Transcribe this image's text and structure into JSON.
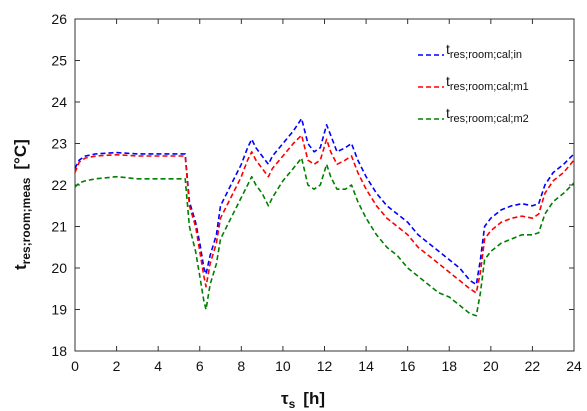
{
  "chart_data": {
    "type": "line",
    "xlabel": "τ",
    "xlabel_sub": "s",
    "xlabel_unit": "[h]",
    "ylabel": "t",
    "ylabel_sub": "res;room;meas",
    "ylabel_unit": "[°C]",
    "xlim": [
      0,
      24
    ],
    "ylim": [
      18,
      26
    ],
    "xticks": [
      "0",
      "2",
      "4",
      "6",
      "8",
      "10",
      "12",
      "14",
      "16",
      "18",
      "20",
      "22",
      "24"
    ],
    "yticks": [
      "18",
      "19",
      "20",
      "21",
      "22",
      "23",
      "24",
      "25",
      "26"
    ],
    "grid": false,
    "legend_position": "top-right",
    "series": [
      {
        "name": "t",
        "sub": "res;room;cal;in",
        "color": "#0000ff",
        "x": [
          0,
          0.2,
          0.5,
          1,
          2,
          3,
          4,
          5,
          5.3,
          5.5,
          5.8,
          6.0,
          6.2,
          6.3,
          6.5,
          6.8,
          7.0,
          7.5,
          8.0,
          8.3,
          8.5,
          8.7,
          9.0,
          9.3,
          9.5,
          10.0,
          10.5,
          10.9,
          11.2,
          11.5,
          11.8,
          12.1,
          12.3,
          12.6,
          13.0,
          13.3,
          13.6,
          14.0,
          14.5,
          15.0,
          15.5,
          16.0,
          16.5,
          17.0,
          17.5,
          18.0,
          18.5,
          19.0,
          19.3,
          19.5,
          19.7,
          20.0,
          20.5,
          21.0,
          21.5,
          22.0,
          22.3,
          22.6,
          23.0,
          23.5,
          24.0
        ],
        "y": [
          22.4,
          22.6,
          22.7,
          22.75,
          22.78,
          22.75,
          22.75,
          22.75,
          22.75,
          21.6,
          21.1,
          20.6,
          20.0,
          19.85,
          20.3,
          20.8,
          21.5,
          22.0,
          22.5,
          22.9,
          23.1,
          22.9,
          22.7,
          22.5,
          22.7,
          23.0,
          23.3,
          23.6,
          23.0,
          22.8,
          22.9,
          23.45,
          23.2,
          22.8,
          22.9,
          23.0,
          22.6,
          22.2,
          21.8,
          21.5,
          21.3,
          21.1,
          20.8,
          20.6,
          20.4,
          20.2,
          20.0,
          19.7,
          19.6,
          20.2,
          21.0,
          21.2,
          21.4,
          21.5,
          21.55,
          21.5,
          21.55,
          22.0,
          22.3,
          22.5,
          22.75
        ]
      },
      {
        "name": "t",
        "sub": "res;room;cal;m1",
        "color": "#ff0000",
        "x": [
          0,
          0.2,
          0.5,
          1,
          2,
          3,
          4,
          5,
          5.3,
          5.5,
          5.8,
          6.0,
          6.2,
          6.3,
          6.5,
          6.8,
          7.0,
          7.5,
          8.0,
          8.3,
          8.5,
          8.7,
          9.0,
          9.3,
          9.5,
          10.0,
          10.5,
          10.9,
          11.2,
          11.5,
          11.8,
          12.1,
          12.3,
          12.6,
          13.0,
          13.3,
          13.6,
          14.0,
          14.5,
          15.0,
          15.5,
          16.0,
          16.5,
          17.0,
          17.5,
          18.0,
          18.5,
          19.0,
          19.3,
          19.5,
          19.7,
          20.0,
          20.5,
          21.0,
          21.5,
          22.0,
          22.3,
          22.6,
          23.0,
          23.5,
          24.0
        ],
        "y": [
          22.3,
          22.55,
          22.65,
          22.7,
          22.73,
          22.7,
          22.7,
          22.7,
          22.7,
          21.5,
          21.0,
          20.4,
          19.8,
          19.55,
          20.1,
          20.6,
          21.2,
          21.7,
          22.2,
          22.6,
          22.8,
          22.6,
          22.4,
          22.2,
          22.4,
          22.7,
          23.0,
          23.2,
          22.6,
          22.5,
          22.6,
          23.1,
          22.8,
          22.5,
          22.6,
          22.7,
          22.3,
          21.9,
          21.5,
          21.2,
          21.0,
          20.8,
          20.5,
          20.3,
          20.1,
          19.9,
          19.7,
          19.5,
          19.4,
          19.9,
          20.7,
          20.9,
          21.1,
          21.2,
          21.25,
          21.2,
          21.3,
          21.8,
          22.1,
          22.3,
          22.6
        ]
      },
      {
        "name": "t",
        "sub": "res;room;cal;m2",
        "color": "#008000",
        "x": [
          0,
          0.2,
          0.5,
          1,
          2,
          3,
          4,
          5,
          5.3,
          5.5,
          5.8,
          6.0,
          6.2,
          6.3,
          6.5,
          6.8,
          7.0,
          7.5,
          8.0,
          8.3,
          8.5,
          8.7,
          9.0,
          9.3,
          9.5,
          10.0,
          10.5,
          10.9,
          11.2,
          11.5,
          11.8,
          12.1,
          12.3,
          12.6,
          13.0,
          13.3,
          13.6,
          14.0,
          14.5,
          15.0,
          15.5,
          16.0,
          16.5,
          17.0,
          17.5,
          18.0,
          18.5,
          19.0,
          19.3,
          19.5,
          19.7,
          20.0,
          20.5,
          21.0,
          21.5,
          22.0,
          22.3,
          22.6,
          23.0,
          23.5,
          24.0
        ],
        "y": [
          21.95,
          22.05,
          22.1,
          22.15,
          22.2,
          22.15,
          22.15,
          22.15,
          22.15,
          21.0,
          20.4,
          19.8,
          19.2,
          19.0,
          19.6,
          20.1,
          20.7,
          21.2,
          21.7,
          22.0,
          22.2,
          22.0,
          21.8,
          21.5,
          21.7,
          22.1,
          22.4,
          22.65,
          22.0,
          21.9,
          22.0,
          22.5,
          22.2,
          21.9,
          21.9,
          22.0,
          21.6,
          21.2,
          20.8,
          20.5,
          20.3,
          20.0,
          19.8,
          19.6,
          19.4,
          19.3,
          19.1,
          18.9,
          18.85,
          19.4,
          20.2,
          20.4,
          20.6,
          20.7,
          20.8,
          20.8,
          20.85,
          21.3,
          21.6,
          21.8,
          22.05
        ]
      }
    ]
  }
}
